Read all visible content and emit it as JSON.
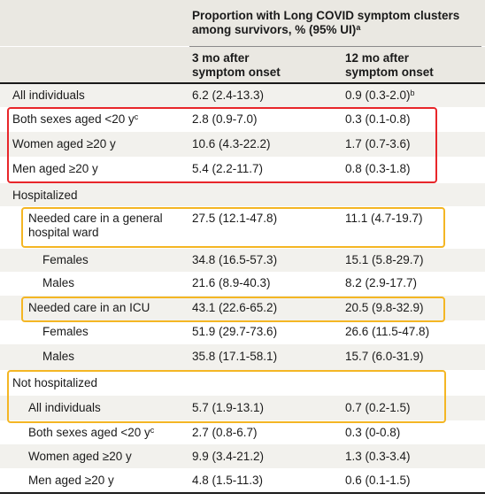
{
  "header": {
    "group_title_line1": "Proportion with Long COVID symptom clusters",
    "group_title_line2": "among survivors, % (95% UI)",
    "group_title_sup": "a",
    "col1_line1": "3 mo after",
    "col1_line2": "symptom onset",
    "col2_line1": "12 mo after",
    "col2_line2": "symptom onset"
  },
  "rows": [
    {
      "label": "All individuals",
      "sup": "",
      "m3": "6.2 (2.4-13.3)",
      "m12": "0.9 (0.3-2.0)",
      "m12_sup": "b"
    },
    {
      "label": "Both sexes aged <20 y",
      "sup": "c",
      "m3": "2.8 (0.9-7.0)",
      "m12": "0.3 (0.1-0.8)",
      "m12_sup": ""
    },
    {
      "label": "Women aged ≥20 y",
      "sup": "",
      "m3": "10.6 (4.3-22.2)",
      "m12": "1.7 (0.7-3.6)",
      "m12_sup": ""
    },
    {
      "label": "Men aged ≥20 y",
      "sup": "",
      "m3": "5.4 (2.2-11.7)",
      "m12": "0.8 (0.3-1.8)",
      "m12_sup": ""
    },
    {
      "label": "Hospitalized",
      "sup": "",
      "m3": "",
      "m12": "",
      "m12_sup": ""
    },
    {
      "label": "Needed care in a general hospital ward",
      "sup": "",
      "m3": "27.5 (12.1-47.8)",
      "m12": "11.1 (4.7-19.7)",
      "m12_sup": ""
    },
    {
      "label": "Females",
      "sup": "",
      "m3": "34.8 (16.5-57.3)",
      "m12": "15.1 (5.8-29.7)",
      "m12_sup": ""
    },
    {
      "label": "Males",
      "sup": "",
      "m3": "21.6 (8.9-40.3)",
      "m12": "8.2 (2.9-17.7)",
      "m12_sup": ""
    },
    {
      "label": "Needed care in an ICU",
      "sup": "",
      "m3": "43.1 (22.6-65.2)",
      "m12": "20.5 (9.8-32.9)",
      "m12_sup": ""
    },
    {
      "label": "Females",
      "sup": "",
      "m3": "51.9 (29.7-73.6)",
      "m12": "26.6 (11.5-47.8)",
      "m12_sup": ""
    },
    {
      "label": "Males",
      "sup": "",
      "m3": "35.8 (17.1-58.1)",
      "m12": "15.7 (6.0-31.9)",
      "m12_sup": ""
    },
    {
      "label": "Not hospitalized",
      "sup": "",
      "m3": "",
      "m12": "",
      "m12_sup": ""
    },
    {
      "label": "All individuals",
      "sup": "",
      "m3": "5.7 (1.9-13.1)",
      "m12": "0.7 (0.2-1.5)",
      "m12_sup": ""
    },
    {
      "label": "Both sexes aged <20 y",
      "sup": "c",
      "m3": "2.7 (0.8-6.7)",
      "m12": "0.3 (0-0.8)",
      "m12_sup": ""
    },
    {
      "label": "Women aged ≥20 y",
      "sup": "",
      "m3": "9.9 (3.4-21.2)",
      "m12": "1.3 (0.3-3.4)",
      "m12_sup": ""
    },
    {
      "label": "Men aged ≥20 y",
      "sup": "",
      "m3": "4.8 (1.5-11.3)",
      "m12": "0.6 (0.1-1.5)",
      "m12_sup": ""
    }
  ],
  "highlight_colors": {
    "red": "#e8262a",
    "orange": "#f4b624"
  }
}
